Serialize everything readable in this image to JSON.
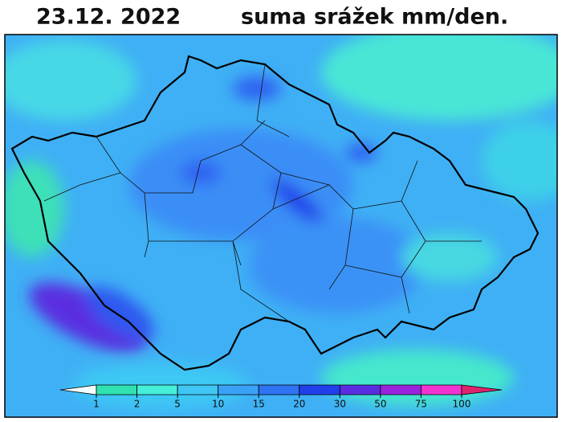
{
  "header": {
    "date": "23.12.  2022",
    "title": "suma srážek mm/den."
  },
  "legend": {
    "ticks": [
      1,
      2,
      5,
      10,
      15,
      20,
      30,
      50,
      75,
      100
    ],
    "colors": [
      "#f4fffc",
      "#2fe2b0",
      "#45efd8",
      "#3fc6f4",
      "#3aa2f6",
      "#2f72f2",
      "#2140ea",
      "#5a2ee0",
      "#9a24de",
      "#f233d2",
      "#e0246c"
    ]
  }
}
